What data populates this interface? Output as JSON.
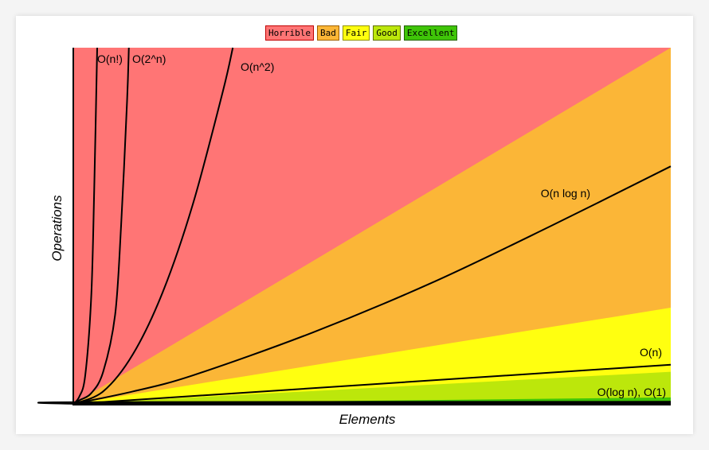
{
  "chart_data": {
    "type": "area",
    "title": "",
    "xlabel": "Elements",
    "ylabel": "Operations",
    "xlim": [
      0,
      100
    ],
    "ylim": [
      0,
      100
    ],
    "legend_position": "top-center",
    "legend": [
      {
        "label": "Horrible",
        "color": "#ff7575",
        "border": "#c00000"
      },
      {
        "label": "Bad",
        "color": "#fbb637",
        "border": "#a06000"
      },
      {
        "label": "Fair",
        "color": "#ffff10",
        "border": "#909000"
      },
      {
        "label": "Good",
        "color": "#bce70b",
        "border": "#607000"
      },
      {
        "label": "Excellent",
        "color": "#3fc508",
        "border": "#206000"
      }
    ],
    "regions": [
      {
        "name": "Horrible",
        "upper_at_x100": 100,
        "color": "#ff7575",
        "full": true
      },
      {
        "name": "Bad",
        "upper_at_x100": 100,
        "color": "#fbb637"
      },
      {
        "name": "Fair",
        "upper_at_x100": 27,
        "color": "#ffff10"
      },
      {
        "name": "Good",
        "upper_at_x100": 9,
        "color": "#bce70b"
      },
      {
        "name": "Excellent",
        "upper_at_x100": 1.8,
        "color": "#3fc508"
      }
    ],
    "series": [
      {
        "name": "O(n!)",
        "points": [
          [
            0,
            0
          ],
          [
            1,
            2
          ],
          [
            2,
            8
          ],
          [
            3,
            30
          ],
          [
            3.5,
            60
          ],
          [
            4,
            100
          ]
        ]
      },
      {
        "name": "O(2^n)",
        "points": [
          [
            0,
            0
          ],
          [
            1,
            1
          ],
          [
            3,
            3
          ],
          [
            5,
            9
          ],
          [
            7,
            25
          ],
          [
            8,
            50
          ],
          [
            9,
            85
          ],
          [
            9.3,
            100
          ]
        ]
      },
      {
        "name": "O(n^2)",
        "points": [
          [
            0,
            0
          ],
          [
            5,
            3.5
          ],
          [
            10,
            14
          ],
          [
            15,
            31.5
          ],
          [
            20,
            56
          ],
          [
            25,
            87.5
          ],
          [
            26.7,
            100
          ]
        ]
      },
      {
        "name": "O(n log n)",
        "points": [
          [
            0,
            0
          ],
          [
            10,
            3.5
          ],
          [
            20,
            8
          ],
          [
            40,
            20
          ],
          [
            60,
            34
          ],
          [
            80,
            50
          ],
          [
            100,
            66.7
          ]
        ]
      },
      {
        "name": "O(n)",
        "points": [
          [
            0,
            0
          ],
          [
            100,
            11
          ]
        ]
      },
      {
        "name": "O(log n), O(1)",
        "points": [
          [
            0,
            0
          ],
          [
            2,
            0.5
          ],
          [
            100,
            0.6
          ]
        ]
      }
    ]
  }
}
